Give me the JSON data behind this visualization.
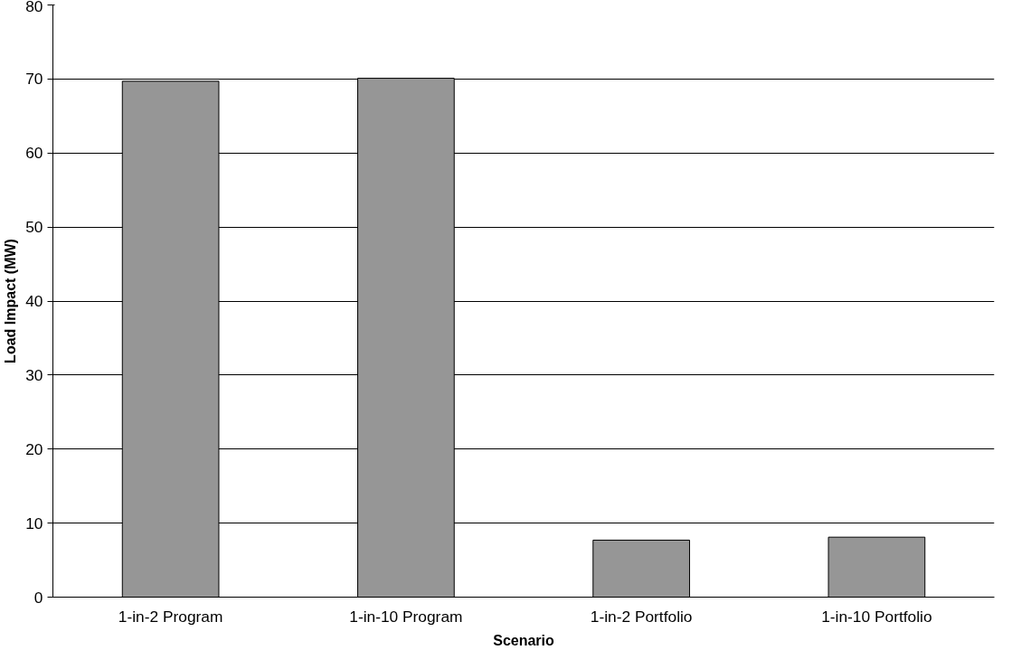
{
  "chart_data": {
    "type": "bar",
    "xlabel": "Scenario",
    "ylabel": "Load Impact (MW)",
    "categories": [
      "1-in-2 Program",
      "1-in-10 Program",
      "1-in-2 Portfolio",
      "1-in-10 Portfolio"
    ],
    "values": [
      69.7,
      70.1,
      7.7,
      8.1
    ],
    "color": "#969696",
    "ylim": [
      0,
      80
    ],
    "yticks": [
      0,
      10,
      20,
      30,
      40,
      50,
      60,
      70,
      80
    ],
    "grid": "y"
  }
}
